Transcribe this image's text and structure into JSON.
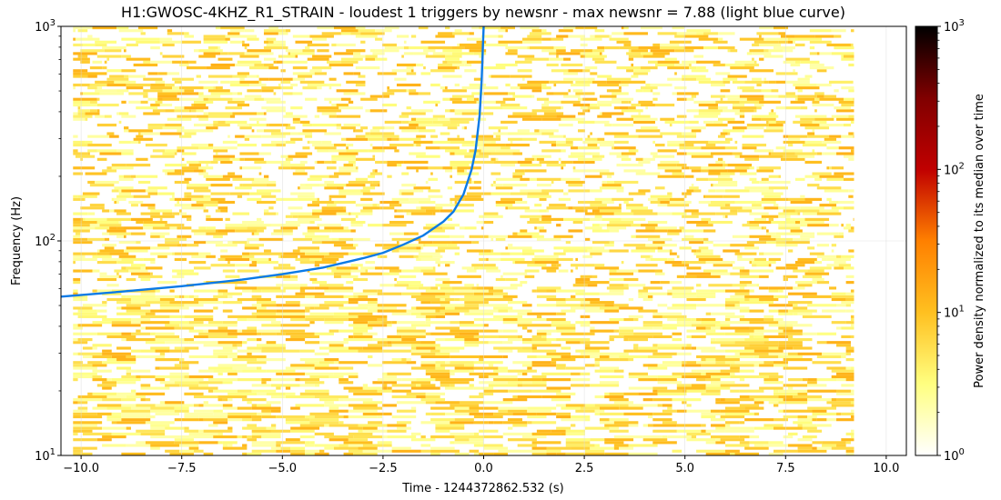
{
  "chart_data": {
    "type": "heatmap",
    "title": "H1:GWOSC-4KHZ_R1_STRAIN - loudest 1 triggers by newsnr - max newsnr = 7.88 (light blue curve)",
    "xlabel": "Time - 1244372862.532 (s)",
    "ylabel": "Frequency (Hz)",
    "xlim": [
      -10.5,
      10.5
    ],
    "ylim": [
      10,
      1000
    ],
    "yscale": "log",
    "x_ticks": [
      -10.0,
      -7.5,
      -5.0,
      -2.5,
      0.0,
      2.5,
      5.0,
      7.5,
      10.0
    ],
    "x_tick_labels": [
      "−10.0",
      "−7.5",
      "−5.0",
      "−2.5",
      "0.0",
      "2.5",
      "5.0",
      "7.5",
      "10.0"
    ],
    "y_ticks": [
      10,
      100,
      1000
    ],
    "y_tick_labels": [
      [
        "10",
        "1"
      ],
      [
        "10",
        "2"
      ],
      [
        "10",
        "3"
      ]
    ],
    "grid": true,
    "spectrogram_time_range": [
      -10.2,
      9.2
    ],
    "spectrogram_dominant_range": [
      1,
      12
    ],
    "colorbar": {
      "label": "Power density normalized to its median over time",
      "scale": "log",
      "range": [
        1,
        1000
      ],
      "ticks": [
        1,
        10,
        100,
        1000
      ],
      "tick_labels": [
        [
          "10",
          "0"
        ],
        [
          "10",
          "1"
        ],
        [
          "10",
          "2"
        ],
        [
          "10",
          "3"
        ]
      ],
      "colormap": [
        "#ffffff",
        "#ffff80",
        "#ffc020",
        "#ff8000",
        "#c00000",
        "#800000",
        "#000000"
      ]
    },
    "series": [
      {
        "name": "max newsnr = 7.88",
        "color": "#0a7ae6",
        "x": [
          -10.5,
          -9.0,
          -7.5,
          -6.0,
          -5.0,
          -4.0,
          -3.0,
          -2.5,
          -2.0,
          -1.5,
          -1.0,
          -0.75,
          -0.5,
          -0.3,
          -0.2,
          -0.1,
          -0.05,
          -0.02,
          0.0
        ],
        "y": [
          55,
          58,
          61.5,
          66,
          70,
          75,
          83,
          88,
          96,
          106,
          123,
          137,
          165,
          215,
          265,
          385,
          560,
          800,
          1000
        ]
      }
    ]
  }
}
